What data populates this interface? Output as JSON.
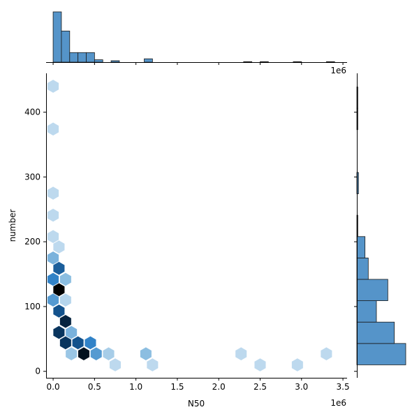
{
  "chart_data": {
    "type": "hexbin-joint",
    "xlabel": "N50",
    "ylabel": "number",
    "x_offset_label": "1e6",
    "top_offset_label": "1e6",
    "xlim": [
      -0.085,
      3.55
    ],
    "ylim": [
      -10,
      460
    ],
    "x_ticks": [
      0.0,
      0.5,
      1.0,
      1.5,
      2.0,
      2.5,
      3.0,
      3.5
    ],
    "x_tick_labels": [
      "0.0",
      "0.5",
      "1.0",
      "1.5",
      "2.0",
      "2.5",
      "3.0",
      "3.5"
    ],
    "y_ticks": [
      0,
      100,
      200,
      300,
      400
    ],
    "y_tick_labels": [
      "0",
      "100",
      "200",
      "300",
      "400"
    ],
    "color": "#4c8ec6",
    "colormap": "Blues",
    "hexbins": [
      {
        "x": 0.0,
        "y": 440,
        "level": 0.12
      },
      {
        "x": 0.0,
        "y": 374,
        "level": 0.12
      },
      {
        "x": 0.0,
        "y": 275,
        "level": 0.12
      },
      {
        "x": 0.0,
        "y": 241,
        "level": 0.12
      },
      {
        "x": 0.0,
        "y": 208,
        "level": 0.12
      },
      {
        "x": 0.07,
        "y": 192,
        "level": 0.12
      },
      {
        "x": 0.0,
        "y": 175,
        "level": 0.35
      },
      {
        "x": 0.07,
        "y": 159,
        "level": 0.7
      },
      {
        "x": 0.0,
        "y": 142,
        "level": 0.55
      },
      {
        "x": 0.15,
        "y": 142,
        "level": 0.3
      },
      {
        "x": 0.07,
        "y": 126,
        "level": 1.0
      },
      {
        "x": 0.0,
        "y": 110,
        "level": 0.45
      },
      {
        "x": 0.15,
        "y": 110,
        "level": 0.15
      },
      {
        "x": 0.07,
        "y": 93,
        "level": 0.75
      },
      {
        "x": 0.15,
        "y": 77,
        "level": 0.9
      },
      {
        "x": 0.07,
        "y": 60,
        "level": 0.85
      },
      {
        "x": 0.22,
        "y": 60,
        "level": 0.35
      },
      {
        "x": 0.15,
        "y": 44,
        "level": 0.85
      },
      {
        "x": 0.3,
        "y": 44,
        "level": 0.75
      },
      {
        "x": 0.45,
        "y": 44,
        "level": 0.55
      },
      {
        "x": 0.22,
        "y": 27,
        "level": 0.25
      },
      {
        "x": 0.37,
        "y": 27,
        "level": 0.95
      },
      {
        "x": 0.52,
        "y": 27,
        "level": 0.45
      },
      {
        "x": 0.67,
        "y": 27,
        "level": 0.2
      },
      {
        "x": 1.12,
        "y": 27,
        "level": 0.3
      },
      {
        "x": 2.27,
        "y": 27,
        "level": 0.12
      },
      {
        "x": 3.3,
        "y": 27,
        "level": 0.12
      },
      {
        "x": 0.75,
        "y": 10,
        "level": 0.12
      },
      {
        "x": 1.2,
        "y": 10,
        "level": 0.12
      },
      {
        "x": 2.5,
        "y": 10,
        "level": 0.12
      },
      {
        "x": 2.95,
        "y": 10,
        "level": 0.12
      }
    ],
    "top_histogram": {
      "bin_width": 0.1,
      "bins": [
        {
          "x0": 0.0,
          "count": 105
        },
        {
          "x0": 0.1,
          "count": 65
        },
        {
          "x0": 0.2,
          "count": 20
        },
        {
          "x0": 0.3,
          "count": 20
        },
        {
          "x0": 0.4,
          "count": 20
        },
        {
          "x0": 0.5,
          "count": 5
        },
        {
          "x0": 0.7,
          "count": 3
        },
        {
          "x0": 1.1,
          "count": 7
        },
        {
          "x0": 2.3,
          "count": 1
        },
        {
          "x0": 2.5,
          "count": 1
        },
        {
          "x0": 2.9,
          "count": 1
        },
        {
          "x0": 3.3,
          "count": 1
        }
      ]
    },
    "right_histogram": {
      "bin_height": 33,
      "bins": [
        {
          "y0": 10,
          "count": 150
        },
        {
          "y0": 43,
          "count": 115
        },
        {
          "y0": 76,
          "count": 60
        },
        {
          "y0": 109,
          "count": 95
        },
        {
          "y0": 142,
          "count": 35
        },
        {
          "y0": 175,
          "count": 25
        },
        {
          "y0": 208,
          "count": 3
        },
        {
          "y0": 274,
          "count": 5
        },
        {
          "y0": 373,
          "count": 3
        },
        {
          "y0": 406,
          "count": 3
        }
      ]
    }
  }
}
